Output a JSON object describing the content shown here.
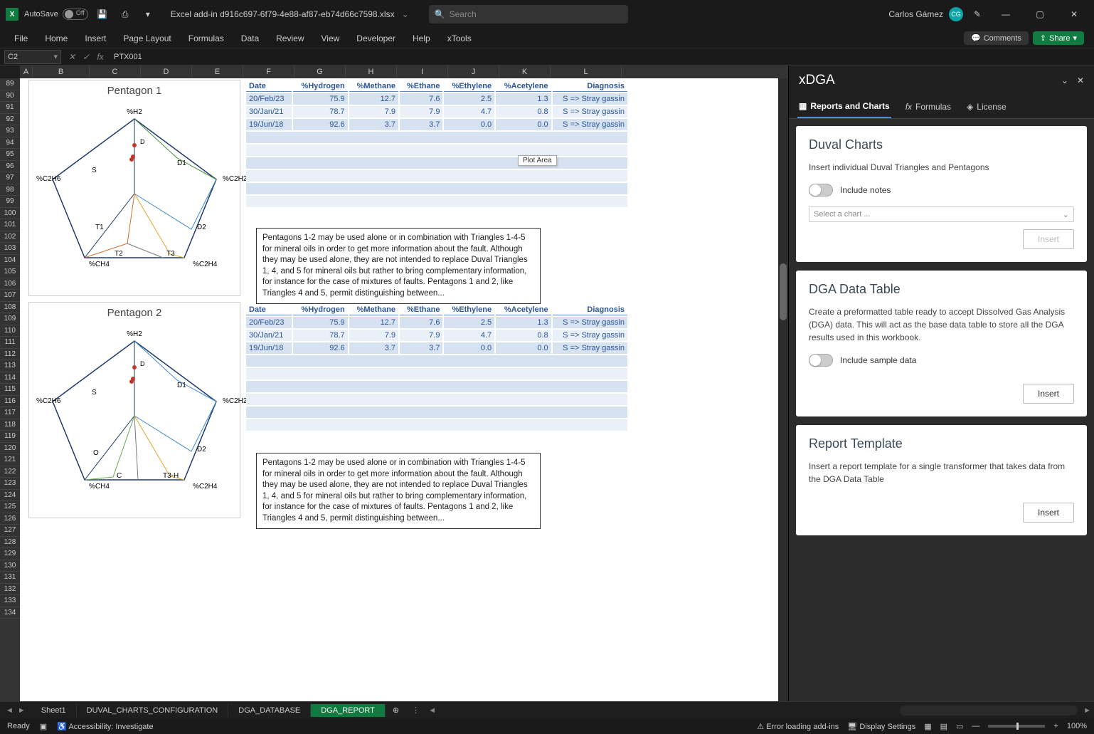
{
  "titlebar": {
    "autosave_label": "AutoSave",
    "autosave_state": "Off",
    "filename": "Excel add-in d916c697-6f79-4e88-af87-eb74d66c7598.xlsx",
    "search_placeholder": "Search",
    "user_name": "Carlos Gámez",
    "user_initials": "CG"
  },
  "ribbon": {
    "tabs": [
      "File",
      "Home",
      "Insert",
      "Page Layout",
      "Formulas",
      "Data",
      "Review",
      "View",
      "Developer",
      "Help",
      "xTools"
    ],
    "comments_label": "Comments",
    "share_label": "Share"
  },
  "formula_bar": {
    "namebox": "C2",
    "value": "PTX001"
  },
  "columns": [
    {
      "label": "A",
      "w": 18
    },
    {
      "label": "B",
      "w": 80
    },
    {
      "label": "C",
      "w": 72
    },
    {
      "label": "D",
      "w": 72
    },
    {
      "label": "E",
      "w": 72
    },
    {
      "label": "F",
      "w": 72
    },
    {
      "label": "G",
      "w": 72
    },
    {
      "label": "H",
      "w": 72
    },
    {
      "label": "I",
      "w": 72
    },
    {
      "label": "J",
      "w": 72
    },
    {
      "label": "K",
      "w": 72
    },
    {
      "label": "L",
      "w": 100
    }
  ],
  "row_start": 89,
  "row_end": 134,
  "charts": {
    "p1": {
      "title": "Pentagon 1",
      "labels": {
        "top": "%H2",
        "r_upper": "%C2H2",
        "r_lower": "%C2H4",
        "b_right": "T3",
        "b_left": "T2",
        "l_lower": "%CH4",
        "l_upper": "%C2H6"
      },
      "regions": {
        "S": "S",
        "D1": "D1",
        "D2": "D2",
        "T1": "T1"
      },
      "points_marker": "D"
    },
    "p2": {
      "title": "Pentagon 2",
      "labels": {
        "top": "%H2",
        "r_upper": "%C2H2",
        "r_lower": "%C2H4",
        "b_right": "T3-H",
        "b_left": "C",
        "l_lower": "%CH4",
        "l_upper": "%C2H6"
      },
      "regions": {
        "S": "S",
        "D1": "D1",
        "D2": "D2",
        "O": "O"
      },
      "points_marker": "D"
    }
  },
  "table": {
    "headers": [
      "Date",
      "%Hydrogen",
      "%Methane",
      "%Ethane",
      "%Ethylene",
      "%Acetylene",
      "Diagnosis"
    ],
    "rows": [
      [
        "20/Feb/23",
        "75.9",
        "12.7",
        "7.6",
        "2.5",
        "1.3",
        "S => Stray gassin"
      ],
      [
        "30/Jan/21",
        "78.7",
        "7.9",
        "7.9",
        "4.7",
        "0.8",
        "S => Stray gassin"
      ],
      [
        "19/Jun/18",
        "92.6",
        "3.7",
        "3.7",
        "0.0",
        "0.0",
        "S => Stray gassin"
      ]
    ]
  },
  "note_text": "Pentagons 1-2 may be used alone or in combination with Triangles 1-4-5 for mineral oils in order to get more information about the fault. Although they may be used alone, they are not intended to replace Duval Triangles 1, 4, and 5 for mineral oils but rather to bring complementary information, for instance for the case of mixtures of faults.\nPentagons 1 and 2, like Triangles 4 and 5, permit distinguishing between...",
  "plot_area_tip": "Plot Area",
  "sidepanel": {
    "title": "xDGA",
    "tabs": [
      {
        "label": "Reports and Charts",
        "icon": "report"
      },
      {
        "label": "Formulas",
        "icon": "fx"
      },
      {
        "label": "License",
        "icon": "shield"
      }
    ],
    "cards": {
      "duval": {
        "heading": "Duval Charts",
        "desc": "Insert individual Duval Triangles and Pentagons",
        "toggle": "Include notes",
        "select_placeholder": "Select a chart ...",
        "btn": "Insert"
      },
      "dga": {
        "heading": "DGA Data Table",
        "desc": "Create a preformatted table ready to accept Dissolved Gas Analysis (DGA) data. This will act as the base data table to store all the DGA results used in this workbook.",
        "toggle": "Include sample data",
        "btn": "Insert"
      },
      "report": {
        "heading": "Report Template",
        "desc": "Insert a report template for a single transformer that takes data from the DGA Data Table",
        "btn": "Insert"
      }
    }
  },
  "sheet_tabs": [
    "Sheet1",
    "DUVAL_CHARTS_CONFIGURATION",
    "DGA_DATABASE",
    "DGA_REPORT"
  ],
  "active_sheet": 3,
  "statusbar": {
    "ready": "Ready",
    "accessibility": "Accessibility: Investigate",
    "error": "Error loading add-ins",
    "display": "Display Settings",
    "zoom": "100%"
  },
  "colors": {
    "excel_green": "#107c41",
    "table_blue": "#2a5599",
    "band": "#d6e2f0",
    "region_S": "#1f3a6e",
    "region_D1": "#4a8f3a",
    "region_D2": "#3f8bcf",
    "region_T1": "#d07030",
    "region_T2": "#7a7a7a",
    "region_T3": "#e0a522",
    "region_O": "#6aa84f"
  }
}
